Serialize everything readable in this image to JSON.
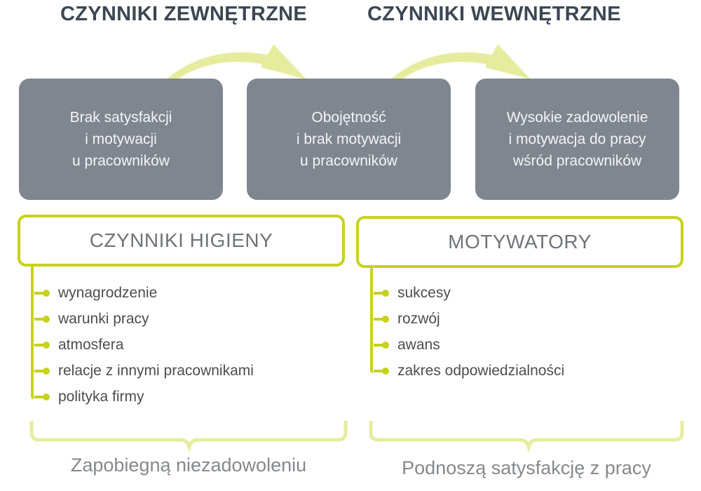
{
  "headings": {
    "external": "CZYNNIKI ZEWNĘTRZNE",
    "internal": "CZYNNIKI WEWNĘTRZNE"
  },
  "states": [
    {
      "lines": [
        "Brak satysfakcji",
        "i motywacji",
        "u pracowników"
      ]
    },
    {
      "lines": [
        "Obojętność",
        "i brak motywacji",
        "u pracowników"
      ]
    },
    {
      "lines": [
        "Wysokie zadowolenie",
        "i motywacja do pracy",
        "wśród pracowników"
      ]
    }
  ],
  "hygiene": {
    "title": "CZYNNIKI HIGIENY",
    "items": [
      "wynagrodzenie",
      "warunki pracy",
      "atmosfera",
      "relacje z innymi pracownikami",
      "polityka firmy"
    ],
    "summary": "Zapobiegną niezadowoleniu"
  },
  "motivators": {
    "title": "MOTYWATORY",
    "items": [
      "sukcesy",
      "rozwój",
      "awans",
      "zakres odpowiedzialności"
    ],
    "summary": "Podnoszą satysfakcję z pracy"
  },
  "colors": {
    "box": "#7f868f",
    "accent": "#c6d21c",
    "accent_light": "#e6ec9e",
    "heading": "#3c4753"
  }
}
